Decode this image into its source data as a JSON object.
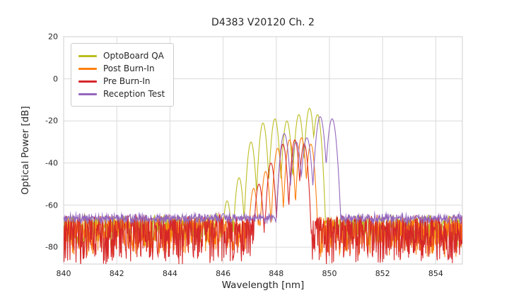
{
  "chart_data": {
    "type": "line",
    "title": "D4383 V20120 Ch. 2",
    "xlabel": "Wavelength [nm]",
    "ylabel": "Optical Power [dB]",
    "xlim": [
      840,
      855
    ],
    "ylim": [
      -88,
      20
    ],
    "xticks": [
      840,
      842,
      844,
      846,
      848,
      850,
      852,
      854
    ],
    "yticks": [
      20,
      0,
      -20,
      -40,
      -60,
      -80
    ],
    "grid": true,
    "legend_position": "upper left",
    "series": [
      {
        "name": "OptoBoard QA",
        "color": "#bcbd22",
        "noise_floor_db": -67,
        "noise_spread_db": 13,
        "peak_width": 0.25,
        "peaks": [
          [
            845.75,
            -64
          ],
          [
            846.15,
            -58
          ],
          [
            846.6,
            -47
          ],
          [
            847.05,
            -30
          ],
          [
            847.5,
            -21
          ],
          [
            847.95,
            -19
          ],
          [
            848.4,
            -20
          ],
          [
            848.85,
            -17
          ],
          [
            849.25,
            -14
          ],
          [
            849.55,
            -17
          ]
        ]
      },
      {
        "name": "Post Burn-In",
        "color": "#ff7f0e",
        "noise_floor_db": -68,
        "noise_spread_db": 17,
        "peak_width": 0.24,
        "peaks": [
          [
            847.15,
            -52
          ],
          [
            847.6,
            -44
          ],
          [
            848.05,
            -33
          ],
          [
            848.5,
            -29
          ],
          [
            848.95,
            -28
          ],
          [
            849.3,
            -31
          ]
        ]
      },
      {
        "name": "Pre Burn-In",
        "color": "#d62728",
        "noise_floor_db": -67,
        "noise_spread_db": 22,
        "peak_width": 0.24,
        "peaks": [
          [
            847.35,
            -50
          ],
          [
            847.8,
            -40
          ],
          [
            848.25,
            -31
          ],
          [
            848.7,
            -29
          ],
          [
            849.05,
            -31
          ]
        ]
      },
      {
        "name": "Reception Test",
        "color": "#9467bd",
        "noise_floor_db": -66.5,
        "noise_spread_db": 2.5,
        "peak_width": 0.28,
        "peaks": [
          [
            846.0,
            -64
          ],
          [
            848.3,
            -26
          ],
          [
            848.75,
            -30
          ],
          [
            849.15,
            -28
          ],
          [
            849.65,
            -18
          ],
          [
            850.1,
            -19
          ]
        ]
      }
    ]
  }
}
